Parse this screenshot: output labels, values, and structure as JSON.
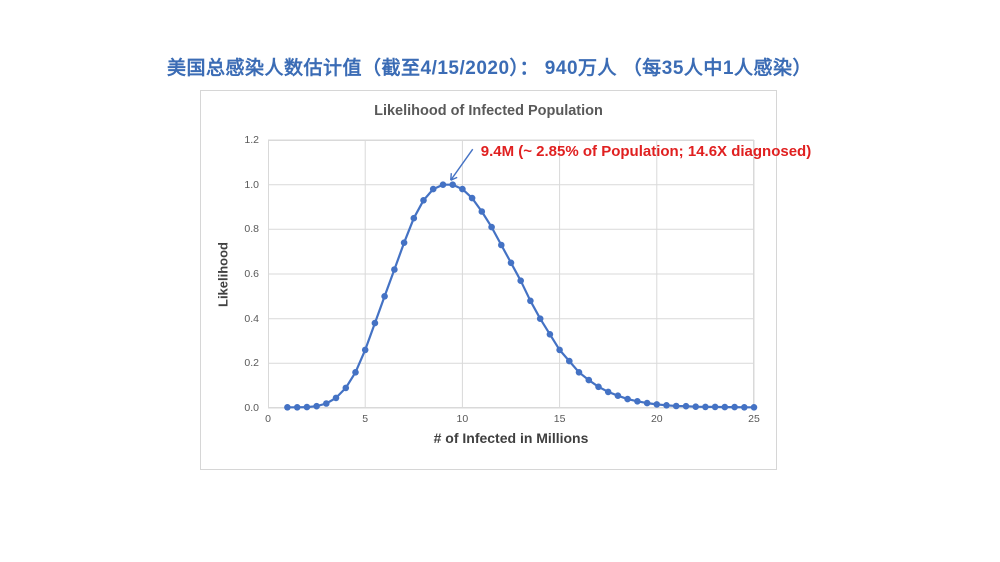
{
  "page": {
    "background": "#FFFFFF",
    "headline": {
      "text": "美国总感染人数估计值（截至4/15/2020）：  940万人 （每35人中1人感染）",
      "color": "#3B6CB5"
    }
  },
  "chart_data": {
    "type": "line",
    "title": "Likelihood of Infected Population",
    "xlabel": "# of Infected in Millions",
    "ylabel": "Likelihood",
    "xlim": [
      0,
      25
    ],
    "ylim": [
      0,
      1.2
    ],
    "grid": true,
    "legend": "none",
    "x_ticks": [
      {
        "value": 0,
        "label": "0"
      },
      {
        "value": 5,
        "label": "5"
      },
      {
        "value": 10,
        "label": "10"
      },
      {
        "value": 15,
        "label": "15"
      },
      {
        "value": 20,
        "label": "20"
      },
      {
        "value": 25,
        "label": "25"
      }
    ],
    "y_ticks": [
      {
        "value": 0.0,
        "label": "0.0"
      },
      {
        "value": 0.2,
        "label": "0.2"
      },
      {
        "value": 0.4,
        "label": "0.4"
      },
      {
        "value": 0.6,
        "label": "0.6"
      },
      {
        "value": 0.8,
        "label": "0.8"
      },
      {
        "value": 1.0,
        "label": "1.0"
      },
      {
        "value": 1.2,
        "label": "1.2"
      }
    ],
    "series": [
      {
        "name": "Likelihood",
        "color": "#4472C4",
        "marker": "circle",
        "x": [
          1,
          1.5,
          2,
          2.5,
          3,
          3.5,
          4,
          4.5,
          5,
          5.5,
          6,
          6.5,
          7,
          7.5,
          8,
          8.5,
          9,
          9.5,
          10,
          10.5,
          11,
          11.5,
          12,
          12.5,
          13,
          13.5,
          14,
          14.5,
          15,
          15.5,
          16,
          16.5,
          17,
          17.5,
          18,
          18.5,
          19,
          19.5,
          20,
          20.5,
          21,
          21.5,
          22,
          22.5,
          23,
          23.5,
          24,
          24.5,
          25
        ],
        "y": [
          0.003,
          0.003,
          0.004,
          0.008,
          0.02,
          0.045,
          0.09,
          0.16,
          0.26,
          0.38,
          0.5,
          0.62,
          0.74,
          0.85,
          0.93,
          0.98,
          1.0,
          1.0,
          0.98,
          0.94,
          0.88,
          0.81,
          0.73,
          0.65,
          0.57,
          0.48,
          0.4,
          0.33,
          0.26,
          0.21,
          0.16,
          0.125,
          0.095,
          0.072,
          0.055,
          0.04,
          0.03,
          0.022,
          0.016,
          0.012,
          0.009,
          0.008,
          0.006,
          0.005,
          0.005,
          0.004,
          0.004,
          0.003,
          0.003
        ]
      }
    ],
    "annotation": {
      "text": "9.4M (~ 2.85% of Population; 14.6X diagnosed)",
      "color": "#E02020",
      "arrow_color": "#4472C4",
      "target_x": 9.4,
      "target_y": 1.02
    },
    "colors": {
      "grid": "#D9D9D9",
      "plot_border": "#D9D9D9",
      "tick_text": "#595959",
      "title_text": "#595959",
      "axis_title_text": "#404040"
    }
  }
}
